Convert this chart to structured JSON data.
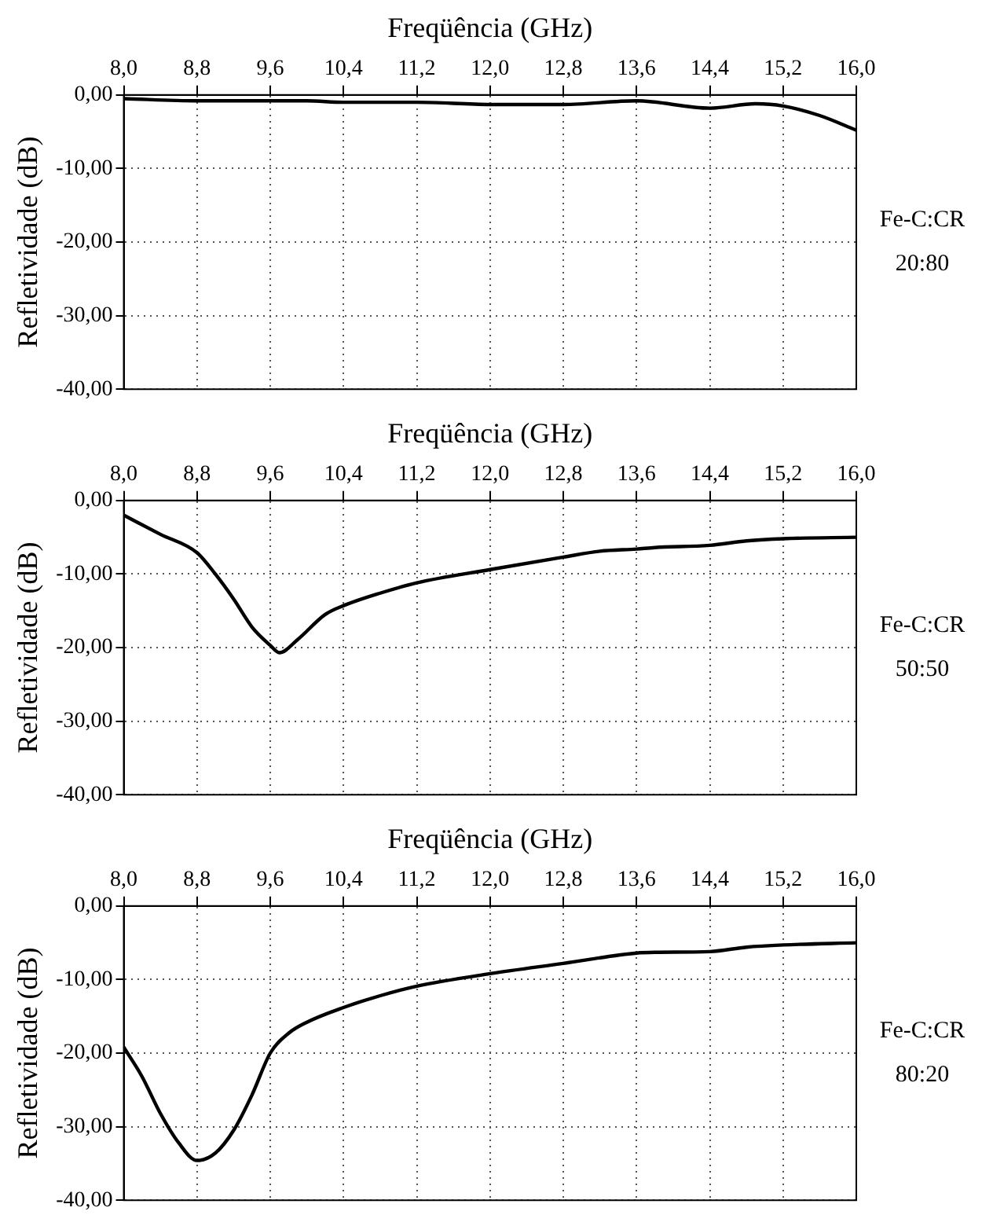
{
  "chart_data": [
    {
      "type": "line",
      "xlabel": "Freqüência (GHz)",
      "ylabel": "Refletividade (dB)",
      "annotations": [
        "Fe-C:CR",
        "20:80"
      ],
      "grid": true,
      "legend": false,
      "marker": "none",
      "line_style": "solid",
      "xlim": [
        8.0,
        16.0
      ],
      "xticks": [
        {
          "value": 8.0,
          "label": "8,0"
        },
        {
          "value": 8.8,
          "label": "8,8"
        },
        {
          "value": 9.6,
          "label": "9,6"
        },
        {
          "value": 10.4,
          "label": "10,4"
        },
        {
          "value": 11.2,
          "label": "11,2"
        },
        {
          "value": 12.0,
          "label": "12,0"
        },
        {
          "value": 12.8,
          "label": "12,8"
        },
        {
          "value": 13.6,
          "label": "13,6"
        },
        {
          "value": 14.4,
          "label": "14,4"
        },
        {
          "value": 15.2,
          "label": "15,2"
        },
        {
          "value": 16.0,
          "label": "16,0"
        }
      ],
      "ylim": [
        -40,
        0
      ],
      "yticks": [
        {
          "value": 0,
          "label": "0,00"
        },
        {
          "value": -10,
          "label": "-10,00"
        },
        {
          "value": -20,
          "label": "-20,00"
        },
        {
          "value": -30,
          "label": "-30,00"
        },
        {
          "value": -40,
          "label": "-40,00"
        }
      ],
      "series": [
        {
          "color": "#000000",
          "x": [
            8.0,
            8.8,
            9.6,
            10.0,
            10.4,
            11.2,
            12.0,
            12.8,
            13.6,
            14.4,
            14.9,
            15.2,
            15.6,
            16.0
          ],
          "values": [
            -0.5,
            -0.8,
            -0.8,
            -0.8,
            -1.0,
            -1.0,
            -1.3,
            -1.3,
            -0.8,
            -1.8,
            -1.2,
            -1.5,
            -2.8,
            -4.8
          ]
        }
      ]
    },
    {
      "type": "line",
      "xlabel": "Freqüência (GHz)",
      "ylabel": "Refletividade (dB)",
      "annotations": [
        "Fe-C:CR",
        "50:50"
      ],
      "grid": true,
      "legend": false,
      "marker": "none",
      "line_style": "solid",
      "xlim": [
        8.0,
        16.0
      ],
      "xticks": [
        {
          "value": 8.0,
          "label": "8,0"
        },
        {
          "value": 8.8,
          "label": "8,8"
        },
        {
          "value": 9.6,
          "label": "9,6"
        },
        {
          "value": 10.4,
          "label": "10,4"
        },
        {
          "value": 11.2,
          "label": "11,2"
        },
        {
          "value": 12.0,
          "label": "12,0"
        },
        {
          "value": 12.8,
          "label": "12,8"
        },
        {
          "value": 13.6,
          "label": "13,6"
        },
        {
          "value": 14.4,
          "label": "14,4"
        },
        {
          "value": 15.2,
          "label": "15,2"
        },
        {
          "value": 16.0,
          "label": "16,0"
        }
      ],
      "ylim": [
        -40,
        0
      ],
      "yticks": [
        {
          "value": 0,
          "label": "0,00"
        },
        {
          "value": -10,
          "label": "-10,00"
        },
        {
          "value": -20,
          "label": "-20,00"
        },
        {
          "value": -30,
          "label": "-30,00"
        },
        {
          "value": -40,
          "label": "-40,00"
        }
      ],
      "series": [
        {
          "color": "#000000",
          "x": [
            8.0,
            8.4,
            8.8,
            9.0,
            9.2,
            9.4,
            9.6,
            9.7,
            9.9,
            10.2,
            10.4,
            10.8,
            11.2,
            12.0,
            12.8,
            13.2,
            13.6,
            13.8,
            14.4,
            14.8,
            15.2,
            16.0
          ],
          "values": [
            -2.0,
            -4.6,
            -7.1,
            -10.0,
            -13.4,
            -17.2,
            -19.7,
            -20.7,
            -18.9,
            -15.5,
            -14.3,
            -12.6,
            -11.2,
            -9.4,
            -7.7,
            -6.9,
            -6.6,
            -6.4,
            -6.1,
            -5.5,
            -5.2,
            -5.0
          ]
        }
      ]
    },
    {
      "type": "line",
      "xlabel": "Freqüência (GHz)",
      "ylabel": "Refletividade (dB)",
      "annotations": [
        "Fe-C:CR",
        "80:20"
      ],
      "grid": true,
      "legend": false,
      "marker": "none",
      "line_style": "solid",
      "xlim": [
        8.0,
        16.0
      ],
      "xticks": [
        {
          "value": 8.0,
          "label": "8,0"
        },
        {
          "value": 8.8,
          "label": "8,8"
        },
        {
          "value": 9.6,
          "label": "9,6"
        },
        {
          "value": 10.4,
          "label": "10,4"
        },
        {
          "value": 11.2,
          "label": "11,2"
        },
        {
          "value": 12.0,
          "label": "12,0"
        },
        {
          "value": 12.8,
          "label": "12,8"
        },
        {
          "value": 13.6,
          "label": "13,6"
        },
        {
          "value": 14.4,
          "label": "14,4"
        },
        {
          "value": 15.2,
          "label": "15,2"
        },
        {
          "value": 16.0,
          "label": "16,0"
        }
      ],
      "ylim": [
        -40,
        0
      ],
      "yticks": [
        {
          "value": 0,
          "label": "0,00"
        },
        {
          "value": -10,
          "label": "-10,00"
        },
        {
          "value": -20,
          "label": "-20,00"
        },
        {
          "value": -30,
          "label": "-30,00"
        },
        {
          "value": -40,
          "label": "-40,00"
        }
      ],
      "series": [
        {
          "color": "#000000",
          "x": [
            8.0,
            8.2,
            8.4,
            8.6,
            8.8,
            9.0,
            9.2,
            9.4,
            9.6,
            9.8,
            10.0,
            10.4,
            10.8,
            11.2,
            12.0,
            12.8,
            13.6,
            13.8,
            14.4,
            14.8,
            15.2,
            16.0
          ],
          "values": [
            -19.2,
            -23.2,
            -28.2,
            -32.2,
            -34.6,
            -33.6,
            -30.5,
            -25.7,
            -20.0,
            -17.3,
            -15.8,
            -13.8,
            -12.2,
            -10.9,
            -9.2,
            -7.8,
            -6.4,
            -6.3,
            -6.2,
            -5.6,
            -5.3,
            -5.0
          ]
        }
      ]
    }
  ]
}
